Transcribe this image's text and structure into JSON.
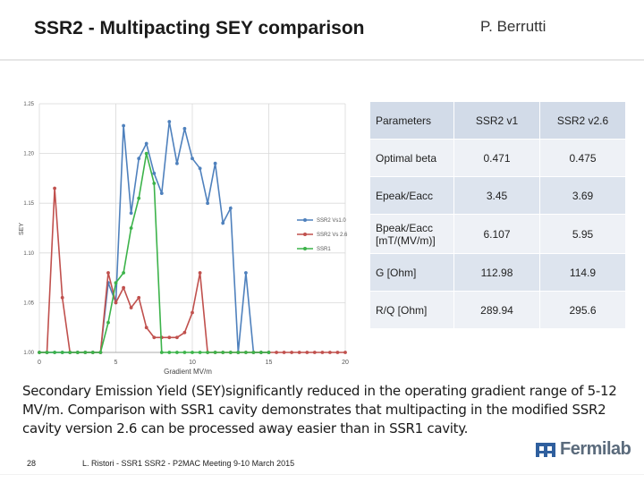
{
  "slide": {
    "title": "SSR2 - Multipacting SEY comparison",
    "author": "P. Berrutti",
    "caption": "Secondary Emission Yield (SEY)significantly reduced in the operating gradient range of 5-12 MV/m. Comparison with SSR1 cavity demonstrates that multipacting in the modified SSR2 cavity version 2.6 can be processed away easier than in SSR1 cavity.",
    "page_number": "28",
    "footer": "L. Ristori - SSR1 SSR2 - P2MAC Meeting 9-10 March 2015",
    "logo_text": "Fermilab"
  },
  "table": {
    "header": [
      "Parameters",
      "SSR2 v1",
      "SSR2 v2.6"
    ],
    "rows": [
      [
        "Optimal beta",
        "0.471",
        "0.475"
      ],
      [
        "Epeak/Eacc",
        "3.45",
        "3.69"
      ],
      [
        "Bpeak/Eacc [mT/(MV/m)]",
        "6.107",
        "5.95"
      ],
      [
        "G [Ohm]",
        "112.98",
        "114.9"
      ],
      [
        "R/Q [Ohm]",
        "289.94",
        "295.6"
      ]
    ]
  },
  "chart_data": {
    "type": "line",
    "title": "",
    "xlabel": "Gradient MV/m",
    "ylabel": "SEY",
    "xlim": [
      0,
      20
    ],
    "ylim": [
      1.0,
      1.25
    ],
    "xticks": [
      "0",
      "5",
      "10",
      "15",
      "20"
    ],
    "yticks": [
      "1.00",
      "1.05",
      "1.10",
      "1.15",
      "1.20",
      "1.25"
    ],
    "grid": true,
    "legend_position": "right",
    "series": [
      {
        "name": "SSR2 Vs1.0",
        "color": "#4f81bd",
        "x": [
          0,
          0.5,
          1,
          1.5,
          2,
          2.5,
          3,
          3.5,
          4,
          4.5,
          5,
          5.5,
          6,
          6.5,
          7,
          7.5,
          8,
          8.5,
          9,
          9.5,
          10,
          10.5,
          11,
          11.5,
          12,
          12.5,
          13,
          13.5,
          14,
          14.5,
          15
        ],
        "y": [
          1.0,
          1.0,
          1.0,
          1.0,
          1.0,
          1.0,
          1.0,
          1.0,
          1.0,
          1.07,
          1.05,
          1.228,
          1.14,
          1.195,
          1.21,
          1.18,
          1.16,
          1.232,
          1.19,
          1.225,
          1.195,
          1.185,
          1.15,
          1.19,
          1.13,
          1.145,
          1.0,
          1.08,
          1.0,
          1.0,
          1.0
        ]
      },
      {
        "name": "SSR2 Vs 2.6",
        "color": "#c0504d",
        "x": [
          0,
          0.5,
          1,
          1.5,
          2,
          2.5,
          3,
          3.5,
          4,
          4.5,
          5,
          5.5,
          6,
          6.5,
          7,
          7.5,
          8,
          8.5,
          9,
          9.5,
          10,
          10.5,
          11,
          11.5,
          12,
          12.5,
          13,
          13.5,
          14,
          14.5,
          15,
          15.5,
          16,
          16.5,
          17,
          17.5,
          18,
          18.5,
          19,
          19.5,
          20
        ],
        "y": [
          1.0,
          1.0,
          1.165,
          1.055,
          1.0,
          1.0,
          1.0,
          1.0,
          1.0,
          1.08,
          1.05,
          1.065,
          1.045,
          1.055,
          1.025,
          1.015,
          1.015,
          1.015,
          1.015,
          1.02,
          1.04,
          1.08,
          1.0,
          1.0,
          1.0,
          1.0,
          1.0,
          1.0,
          1.0,
          1.0,
          1.0,
          1.0,
          1.0,
          1.0,
          1.0,
          1.0,
          1.0,
          1.0,
          1.0,
          1.0,
          1.0
        ]
      },
      {
        "name": "SSR1",
        "color": "#3cb34a",
        "x": [
          0,
          0.5,
          1,
          1.5,
          2,
          2.5,
          3,
          3.5,
          4,
          4.5,
          5,
          5.5,
          6,
          6.5,
          7,
          7.5,
          8,
          8.5,
          9,
          9.5,
          10,
          10.5,
          11,
          11.5,
          12,
          12.5,
          13,
          13.5,
          14,
          14.5,
          15
        ],
        "y": [
          1.0,
          1.0,
          1.0,
          1.0,
          1.0,
          1.0,
          1.0,
          1.0,
          1.0,
          1.03,
          1.07,
          1.08,
          1.125,
          1.155,
          1.2,
          1.17,
          1.0,
          1.0,
          1.0,
          1.0,
          1.0,
          1.0,
          1.0,
          1.0,
          1.0,
          1.0,
          1.0,
          1.0,
          1.0,
          1.0,
          1.0
        ]
      }
    ]
  }
}
